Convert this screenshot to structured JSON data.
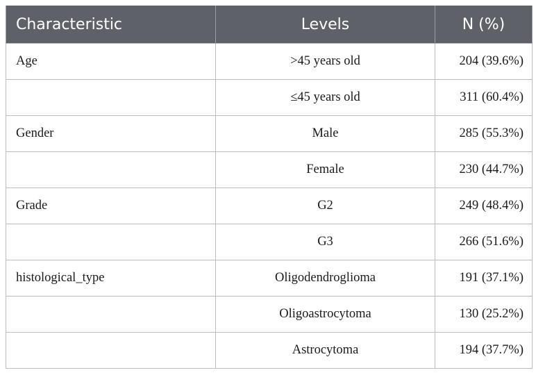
{
  "table": {
    "headers": [
      "Characteristic",
      "Levels",
      "N (%)"
    ],
    "rows": [
      {
        "characteristic": "Age",
        "level": ">45 years old",
        "n": "204 (39.6%)"
      },
      {
        "characteristic": "",
        "level": "≤45 years old",
        "n": "311 (60.4%)"
      },
      {
        "characteristic": "Gender",
        "level": "Male",
        "n": "285 (55.3%)"
      },
      {
        "characteristic": "",
        "level": "Female",
        "n": "230 (44.7%)"
      },
      {
        "characteristic": "Grade",
        "level": "G2",
        "n": "249 (48.4%)"
      },
      {
        "characteristic": "",
        "level": "G3",
        "n": "266 (51.6%)"
      },
      {
        "characteristic": "histological_type",
        "level": "Oligodendroglioma",
        "n": "191 (37.1%)"
      },
      {
        "characteristic": "",
        "level": "Oligoastrocytoma",
        "n": "130 (25.2%)"
      },
      {
        "characteristic": "",
        "level": "Astrocytoma",
        "n": "194 (37.7%)"
      }
    ]
  }
}
